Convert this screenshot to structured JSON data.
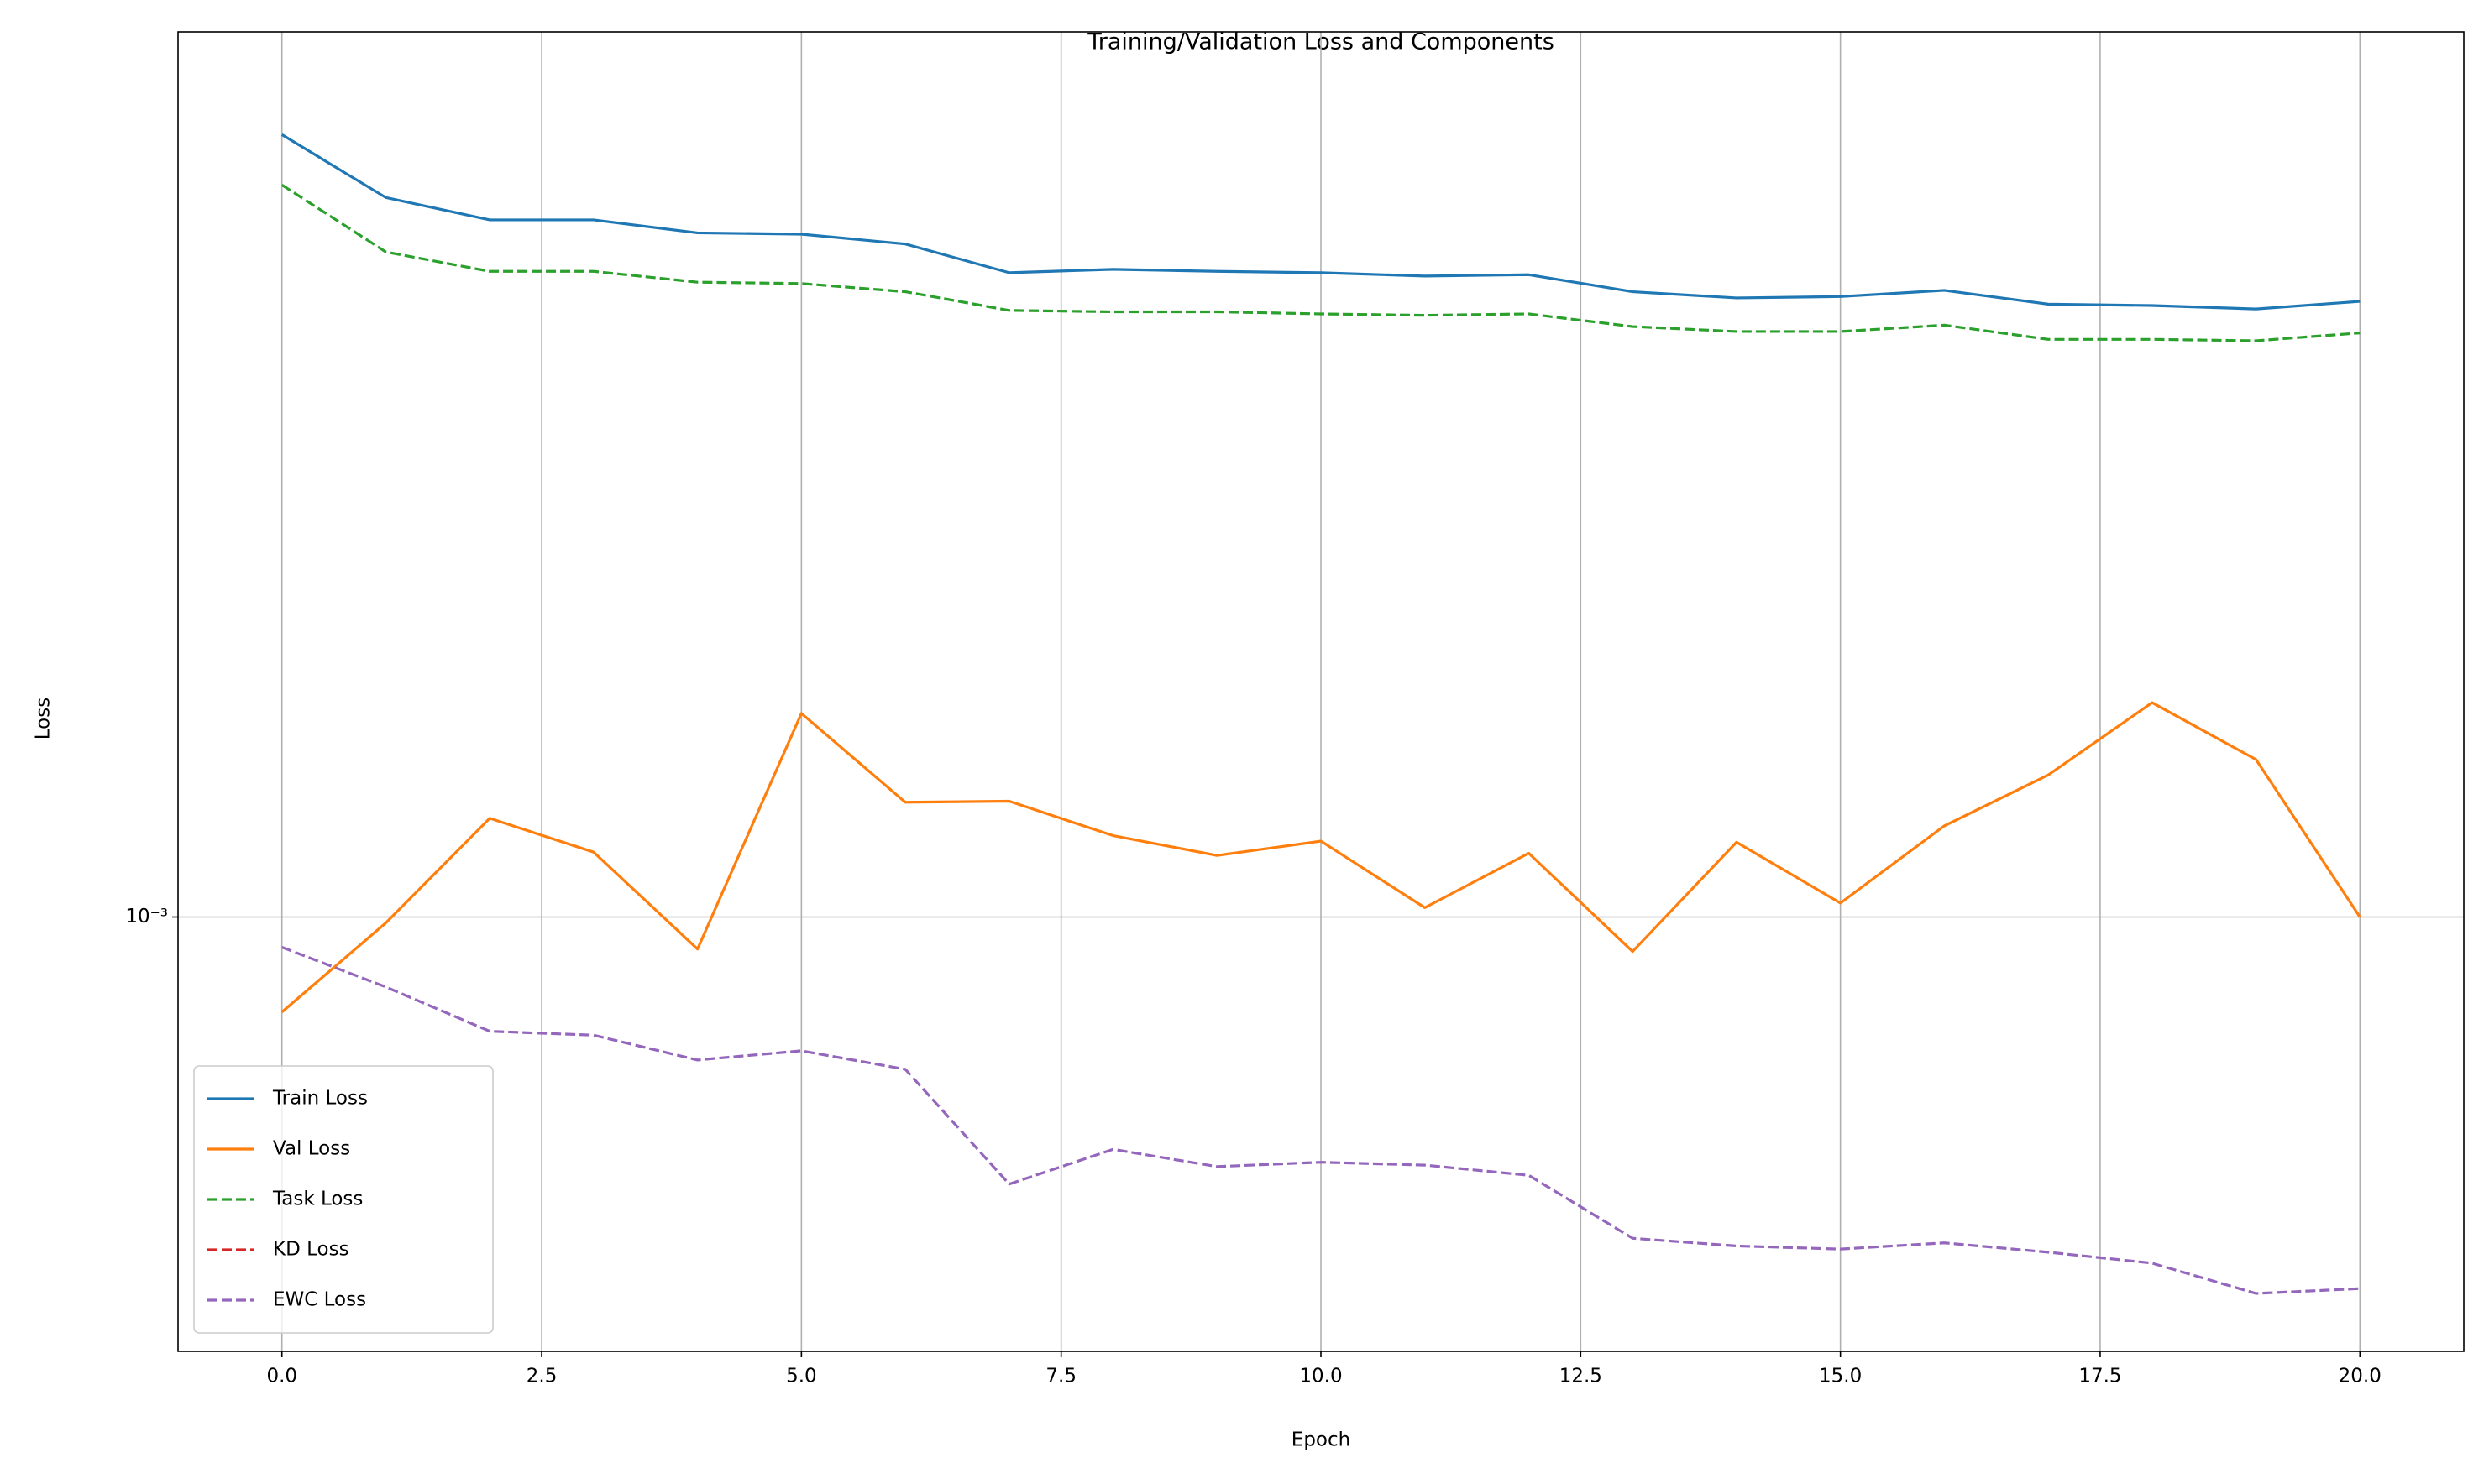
{
  "chart_data": {
    "type": "line",
    "title": "Training/Validation Loss and Components",
    "xlabel": "Epoch",
    "ylabel": "Loss",
    "x": [
      0,
      1,
      2,
      3,
      4,
      5,
      6,
      7,
      8,
      9,
      10,
      11,
      12,
      13,
      14,
      15,
      16,
      17,
      18,
      19,
      20
    ],
    "series": [
      {
        "name": "Train Loss",
        "color": "#1f77b4",
        "linestyle": "solid",
        "values": [
          0.001951,
          0.001849,
          0.001814,
          0.001814,
          0.001794,
          0.001792,
          0.001777,
          0.001734,
          0.001739,
          0.001736,
          0.001734,
          0.001729,
          0.001731,
          0.001706,
          0.001697,
          0.001699,
          0.001708,
          0.001688,
          0.001686,
          0.001681,
          0.001692
        ]
      },
      {
        "name": "Val Loss",
        "color": "#ff7f0e",
        "linestyle": "solid",
        "values": [
          0.000922,
          0.000995,
          0.001088,
          0.001057,
          0.000973,
          0.00119,
          0.001103,
          0.001104,
          0.001072,
          0.001054,
          0.001067,
          0.001008,
          0.001056,
          0.000971,
          0.001066,
          0.001012,
          0.001081,
          0.001129,
          0.001201,
          0.001144,
          0.001
        ]
      },
      {
        "name": "Task Loss",
        "color": "#2ca02c",
        "linestyle": "dashed",
        "values": [
          0.001869,
          0.001765,
          0.001736,
          0.001736,
          0.00172,
          0.001718,
          0.001706,
          0.001679,
          0.001677,
          0.001677,
          0.001674,
          0.001672,
          0.001674,
          0.001656,
          0.001649,
          0.001649,
          0.001658,
          0.001638,
          0.001638,
          0.001636,
          0.001647
        ]
      },
      {
        "name": "KD Loss",
        "color": "#d62728",
        "linestyle": "dashed",
        "values": [
          0,
          0,
          0,
          0,
          0,
          0,
          0,
          0,
          0,
          0,
          0,
          0,
          0,
          0,
          0,
          0,
          0,
          0,
          0,
          0,
          0
        ]
      },
      {
        "name": "EWC Loss",
        "color": "#9467bd",
        "linestyle": "dashed",
        "values": [
          0.0009745,
          0.000942,
          0.000907,
          0.000904,
          0.000885,
          0.000892,
          0.000878,
          0.000796,
          0.00082,
          0.000808,
          0.000811,
          0.000809,
          0.000802,
          0.00076,
          0.000755,
          0.000753,
          0.000757,
          0.000751,
          0.000744,
          0.000725,
          0.000728
        ]
      }
    ],
    "xlim": [
      -1,
      21
    ],
    "xticks": [
      {
        "value": 0,
        "label": "0.0"
      },
      {
        "value": 2.5,
        "label": "2.5"
      },
      {
        "value": 5,
        "label": "5.0"
      },
      {
        "value": 7.5,
        "label": "7.5"
      },
      {
        "value": 10,
        "label": "10.0"
      },
      {
        "value": 12.5,
        "label": "12.5"
      },
      {
        "value": 15,
        "label": "15.0"
      },
      {
        "value": 17.5,
        "label": "17.5"
      },
      {
        "value": 20,
        "label": "20.0"
      }
    ],
    "ylim": [
      0.00069,
      0.00213
    ],
    "yticks": [
      {
        "value": 0.001,
        "label": "10⁻³"
      }
    ],
    "yscale": "log",
    "grid": true,
    "legend": "lower left"
  }
}
